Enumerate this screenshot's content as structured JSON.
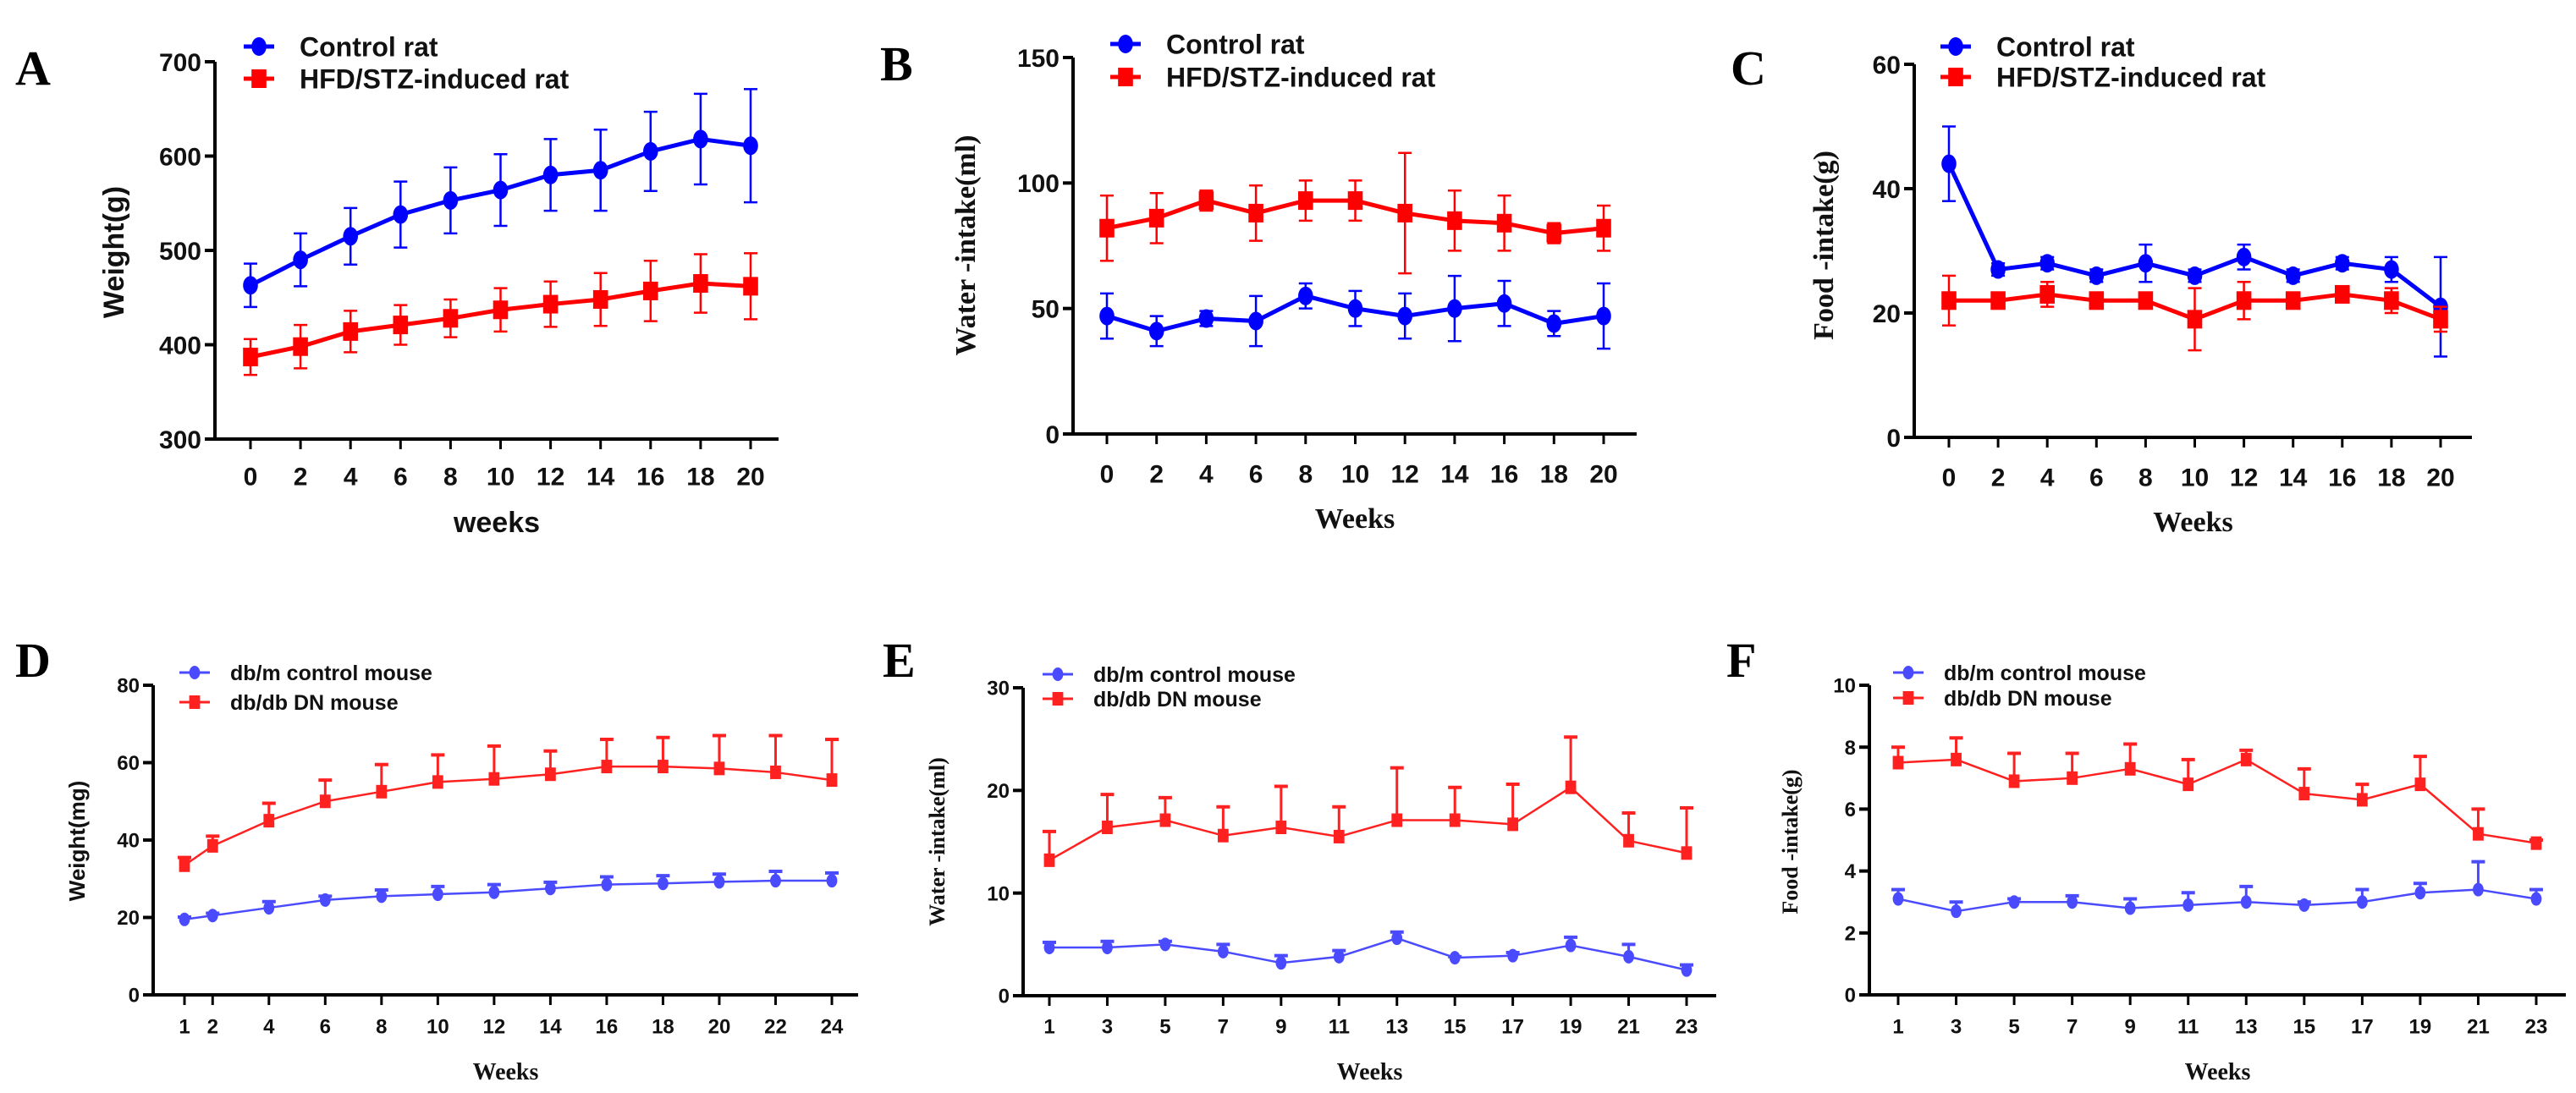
{
  "colors": {
    "control": "#0000ff",
    "model": "#ff0000",
    "control_light": "#4a4aff",
    "model_light": "#ff2020",
    "axis": "#000000"
  },
  "chart_data": [
    {
      "panel": "A",
      "type": "line",
      "xlabel": "weeks",
      "ylabel": "Weight(g)",
      "xlim": [
        0,
        20
      ],
      "ylim": [
        300,
        700
      ],
      "yticks": [
        300,
        400,
        500,
        600,
        700
      ],
      "x": [
        0,
        2,
        4,
        6,
        8,
        10,
        12,
        14,
        16,
        18,
        20
      ],
      "error_bars": "both",
      "series": [
        {
          "name": "Control rat",
          "marker": "circle",
          "values": [
            463,
            490,
            515,
            538,
            553,
            564,
            580,
            585,
            605,
            618,
            611
          ],
          "error": [
            23,
            28,
            30,
            35,
            35,
            38,
            38,
            43,
            42,
            48,
            60
          ]
        },
        {
          "name": "HFD/STZ-induced rat",
          "marker": "square",
          "values": [
            387,
            398,
            414,
            421,
            428,
            437,
            443,
            448,
            457,
            465,
            462
          ],
          "error": [
            19,
            23,
            22,
            21,
            20,
            23,
            24,
            28,
            32,
            31,
            35
          ]
        }
      ]
    },
    {
      "panel": "B",
      "type": "line",
      "xlabel": "Weeks",
      "ylabel": "Water -intake(ml)",
      "xlim": [
        0,
        20
      ],
      "ylim": [
        0,
        150
      ],
      "yticks": [
        0,
        50,
        100,
        150
      ],
      "x": [
        0,
        2,
        4,
        6,
        8,
        10,
        12,
        14,
        16,
        18,
        20
      ],
      "error_bars": "both",
      "series": [
        {
          "name": "Control rat",
          "marker": "circle",
          "values": [
            47,
            41,
            46,
            45,
            55,
            50,
            47,
            50,
            52,
            44,
            47
          ],
          "error": [
            9,
            6,
            3,
            10,
            5,
            7,
            9,
            13,
            9,
            5,
            13
          ]
        },
        {
          "name": "HFD/STZ-induced rat",
          "marker": "square",
          "values": [
            82,
            86,
            93,
            88,
            93,
            93,
            88,
            85,
            84,
            80,
            82
          ],
          "error": [
            13,
            10,
            4,
            11,
            8,
            8,
            24,
            12,
            11,
            4,
            9
          ]
        }
      ]
    },
    {
      "panel": "C",
      "type": "line",
      "xlabel": "Weeks",
      "ylabel": "Food -intake(g)",
      "xlim": [
        0,
        20
      ],
      "ylim": [
        0,
        60
      ],
      "yticks": [
        0,
        20,
        40,
        60
      ],
      "x": [
        0,
        2,
        4,
        6,
        8,
        10,
        12,
        14,
        16,
        18,
        20
      ],
      "error_bars": "both",
      "series": [
        {
          "name": "Control rat",
          "marker": "circle",
          "values": [
            44,
            27,
            28,
            26,
            28,
            26,
            29,
            26,
            28,
            27,
            21
          ],
          "error": [
            6,
            1,
            1,
            1,
            3,
            1,
            2,
            1,
            1,
            2,
            8
          ]
        },
        {
          "name": "HFD/STZ-induced rat",
          "marker": "square",
          "values": [
            22,
            22,
            23,
            22,
            22,
            19,
            22,
            22,
            23,
            22,
            19
          ],
          "error": [
            4,
            1,
            2,
            1,
            1,
            5,
            3,
            1,
            1,
            2,
            2
          ]
        }
      ]
    },
    {
      "panel": "D",
      "type": "line",
      "xlabel": "Weeks",
      "ylabel": "Weight(mg)",
      "xlim": [
        1,
        24
      ],
      "ylim": [
        0,
        80
      ],
      "yticks": [
        0,
        20,
        40,
        60,
        80
      ],
      "x": [
        1,
        2,
        4,
        6,
        8,
        10,
        12,
        14,
        16,
        18,
        20,
        22,
        24
      ],
      "error_bars": "upper",
      "series": [
        {
          "name": "db/m control mouse",
          "marker": "circle",
          "values": [
            19.5,
            20.5,
            22.5,
            24.5,
            25.5,
            26,
            26.5,
            27.5,
            28.5,
            28.8,
            29.2,
            29.5,
            29.5
          ],
          "error": [
            0.6,
            0.6,
            1.6,
            1,
            1.6,
            2,
            2,
            1.6,
            2,
            2,
            2,
            2.4,
            2
          ]
        },
        {
          "name": "db/db DN mouse",
          "marker": "square",
          "values": [
            33.5,
            38.5,
            45,
            50,
            52.5,
            55,
            55.8,
            57,
            59,
            59,
            58.5,
            57.5,
            55.5
          ],
          "error": [
            2,
            2.5,
            4.5,
            5.5,
            7,
            7,
            8.5,
            6,
            7,
            7.5,
            8.5,
            9.5,
            10.5
          ]
        }
      ]
    },
    {
      "panel": "E",
      "type": "line",
      "xlabel": "Weeks",
      "ylabel": "Water -intake(ml)",
      "xlim": [
        1,
        23
      ],
      "ylim": [
        0,
        30
      ],
      "yticks": [
        0,
        10,
        20,
        30
      ],
      "x": [
        1,
        3,
        5,
        7,
        9,
        11,
        13,
        15,
        17,
        19,
        21,
        23
      ],
      "error_bars": "upper",
      "series": [
        {
          "name": "db/m control mouse",
          "marker": "circle",
          "values": [
            4.7,
            4.7,
            5.0,
            4.3,
            3.2,
            3.8,
            5.6,
            3.7,
            3.9,
            4.9,
            3.8,
            2.5
          ],
          "error": [
            0.5,
            0.6,
            0.3,
            0.7,
            0.7,
            0.6,
            0.6,
            0.1,
            0.3,
            0.8,
            1.2,
            0.5
          ]
        },
        {
          "name": "db/db DN mouse",
          "marker": "square",
          "values": [
            13.2,
            16.4,
            17.1,
            15.6,
            16.4,
            15.5,
            17.1,
            17.1,
            16.7,
            20.3,
            15.1,
            13.9
          ],
          "error": [
            2.8,
            3.2,
            2.2,
            2.8,
            4.0,
            2.9,
            5.1,
            3.2,
            3.9,
            4.9,
            2.7,
            4.4
          ]
        }
      ]
    },
    {
      "panel": "F",
      "type": "line",
      "xlabel": "Weeks",
      "ylabel": "Food -intake(g)",
      "xlim": [
        1,
        23
      ],
      "ylim": [
        0,
        10
      ],
      "yticks": [
        0,
        2,
        4,
        6,
        8,
        10
      ],
      "x": [
        1,
        3,
        5,
        7,
        9,
        11,
        13,
        15,
        17,
        19,
        21,
        23
      ],
      "error_bars": "upper",
      "series": [
        {
          "name": "db/m control mouse",
          "marker": "circle",
          "values": [
            3.1,
            2.7,
            3.0,
            3.0,
            2.8,
            2.9,
            3.0,
            2.9,
            3.0,
            3.3,
            3.4,
            3.1
          ],
          "error": [
            0.3,
            0.3,
            0.1,
            0.2,
            0.3,
            0.4,
            0.5,
            0.1,
            0.4,
            0.3,
            0.9,
            0.3
          ]
        },
        {
          "name": "db/db DN mouse",
          "marker": "square",
          "values": [
            7.5,
            7.6,
            6.9,
            7.0,
            7.3,
            6.8,
            7.6,
            6.5,
            6.3,
            6.8,
            5.2,
            4.9
          ],
          "error": [
            0.5,
            0.7,
            0.9,
            0.8,
            0.8,
            0.8,
            0.3,
            0.8,
            0.5,
            0.9,
            0.8,
            0.1
          ]
        }
      ]
    }
  ]
}
